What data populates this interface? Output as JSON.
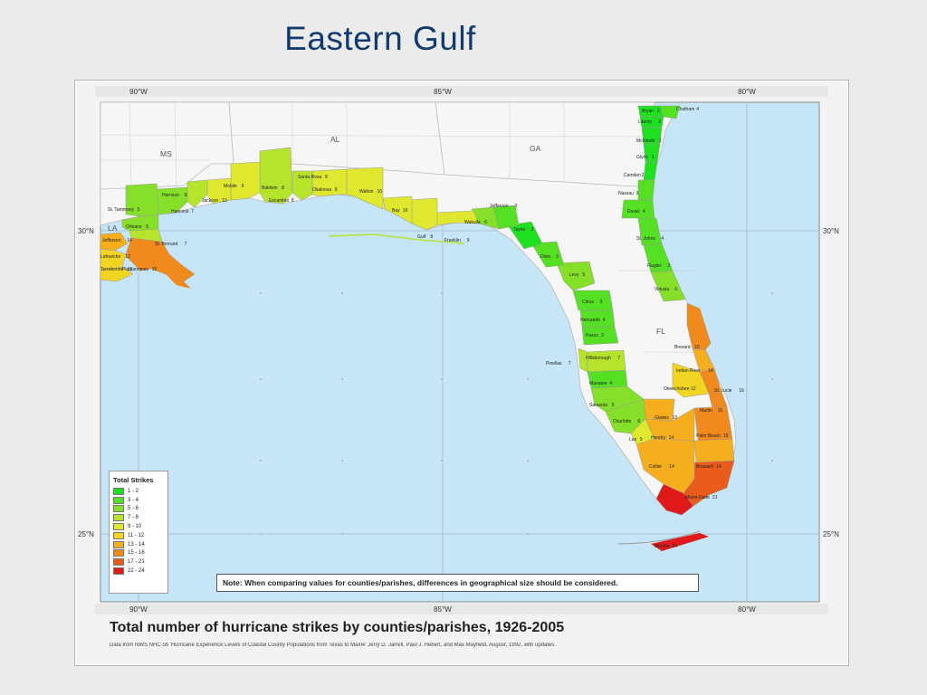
{
  "slide": {
    "title": "Eastern  Gulf"
  },
  "map": {
    "caption": "Total number of hurricane strikes by counties/parishes, 1926-2005",
    "credit": "Data from NWS NHC 5b 'Hurricane Experience Levels of Coastal County Populations from Texas to Maine' Jerry D. Jarrell, Paul J. Hebert, and Max Mayfield, August, 1992, with updates.",
    "note": "Note: When comparing values for counties/parishes, differences in geographical size should be considered.",
    "longitude_labels": [
      "90°W",
      "85°W",
      "80°W"
    ],
    "latitude_labels": [
      "30°N",
      "25°N"
    ],
    "state_labels": [
      "MS",
      "AL",
      "GA",
      "LA",
      "FL"
    ],
    "colors": {
      "water": "#c6e6f7",
      "land": "#f6f6f6",
      "border": "#b9b9b9",
      "grid": "#9fb8c9"
    },
    "legend": {
      "title": "Total Strikes",
      "items": [
        {
          "label": "1 - 2",
          "color": "#1fe01f"
        },
        {
          "label": "3 - 4",
          "color": "#55e024"
        },
        {
          "label": "5 - 6",
          "color": "#86e02a"
        },
        {
          "label": "7 - 8",
          "color": "#b6e32c"
        },
        {
          "label": "9 - 10",
          "color": "#dfe82e"
        },
        {
          "label": "11 - 12",
          "color": "#f2d422"
        },
        {
          "label": "13 - 14",
          "color": "#f5ae1e"
        },
        {
          "label": "15 - 16",
          "color": "#f08a1c"
        },
        {
          "label": "17 - 21",
          "color": "#ea5c1c"
        },
        {
          "label": "22 - 24",
          "color": "#e01a1a"
        }
      ]
    },
    "counties": [
      {
        "name": "Bryan",
        "strikes": 2
      },
      {
        "name": "Chatham",
        "strikes": 4
      },
      {
        "name": "Liberty",
        "strikes": 2
      },
      {
        "name": "McIntosh",
        "strikes": 1
      },
      {
        "name": "Glynn",
        "strikes": 1
      },
      {
        "name": "Camden",
        "strikes": 2
      },
      {
        "name": "Nassau",
        "strikes": 3
      },
      {
        "name": "Duval",
        "strikes": 4
      },
      {
        "name": "St. Johns",
        "strikes": 4
      },
      {
        "name": "Flagler",
        "strikes": 3
      },
      {
        "name": "Volusia",
        "strikes": 6
      },
      {
        "name": "Brevard",
        "strikes": 15
      },
      {
        "name": "Indian River",
        "strikes": 14
      },
      {
        "name": "St. Lucie",
        "strikes": 16
      },
      {
        "name": "Okeechobee",
        "strikes": 12
      },
      {
        "name": "Martin",
        "strikes": 16
      },
      {
        "name": "Palm Beach",
        "strikes": 15
      },
      {
        "name": "Broward",
        "strikes": 14
      },
      {
        "name": "Miami-Dade",
        "strikes": 21
      },
      {
        "name": "Monroe",
        "strikes": 24
      },
      {
        "name": "Collier",
        "strikes": 14
      },
      {
        "name": "Hendry",
        "strikes": 14
      },
      {
        "name": "Glades",
        "strikes": 13
      },
      {
        "name": "Lee",
        "strikes": 9
      },
      {
        "name": "Charlotte",
        "strikes": 6
      },
      {
        "name": "Sarasota",
        "strikes": 5
      },
      {
        "name": "Manatee",
        "strikes": 4
      },
      {
        "name": "Hillsborough",
        "strikes": 7
      },
      {
        "name": "Pinellas",
        "strikes": 7
      },
      {
        "name": "Pasco",
        "strikes": 3
      },
      {
        "name": "Hernando",
        "strikes": 4
      },
      {
        "name": "Citrus",
        "strikes": 3
      },
      {
        "name": "Levy",
        "strikes": 5
      },
      {
        "name": "Dixie",
        "strikes": 3
      },
      {
        "name": "Taylor",
        "strikes": 2
      },
      {
        "name": "Jefferson",
        "strikes": 3
      },
      {
        "name": "Wakulla",
        "strikes": 6
      },
      {
        "name": "Franklin",
        "strikes": 9
      },
      {
        "name": "Gulf",
        "strikes": 8
      },
      {
        "name": "Bay",
        "strikes": 10
      },
      {
        "name": "Walton",
        "strikes": 10
      },
      {
        "name": "Okaloosa",
        "strikes": 9
      },
      {
        "name": "Santa Rosa",
        "strikes": 9
      },
      {
        "name": "Escambia",
        "strikes": 8
      },
      {
        "name": "Baldwin",
        "strikes": 8
      },
      {
        "name": "Mobile",
        "strikes": 9
      },
      {
        "name": "Jackson",
        "strikes": 10
      },
      {
        "name": "Harrison",
        "strikes": 9
      },
      {
        "name": "Hancock",
        "strikes": 7
      },
      {
        "name": "St. Tammany",
        "strikes": 5
      },
      {
        "name": "Orleans",
        "strikes": 5
      },
      {
        "name": "St. Bernard",
        "strikes": 7
      },
      {
        "name": "Jefferson",
        "strikes": 14
      },
      {
        "name": "Lafourche",
        "strikes": 12
      },
      {
        "name": "Plaquemines",
        "strikes": 15
      },
      {
        "name": "Terrebonne",
        "strikes": 12
      }
    ]
  }
}
